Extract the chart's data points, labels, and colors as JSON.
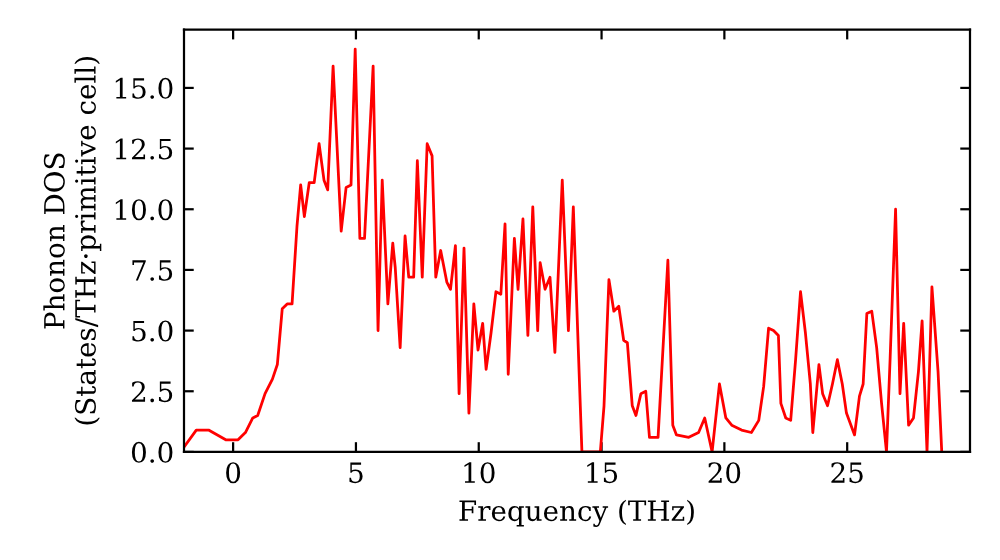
{
  "chart_data": {
    "type": "line",
    "xlabel": "Frequency (THz)",
    "ylabel": "Phonon DOS\n(States/THz·primitive cell)",
    "xlim": [
      -2,
      30
    ],
    "ylim": [
      0,
      17.4
    ],
    "xticks": [
      0,
      5,
      10,
      15,
      20,
      25
    ],
    "yticks": [
      {
        "value": 0,
        "label": "0.0"
      },
      {
        "value": 2.5,
        "label": "2.5"
      },
      {
        "value": 5,
        "label": "5.0"
      },
      {
        "value": 7.5,
        "label": "7.5"
      },
      {
        "value": 10,
        "label": "10.0"
      },
      {
        "value": 12.5,
        "label": "12.5"
      },
      {
        "value": 15,
        "label": "15.0"
      }
    ],
    "grid": false,
    "legend": false,
    "marker": "none",
    "line_style": "solid",
    "series": [
      {
        "color": "#ff0000",
        "x": [
          -2,
          -1.5,
          -1.0,
          -0.3,
          0.2,
          0.5,
          0.8,
          1.0,
          1.3,
          1.6,
          1.8,
          2.0,
          2.2,
          2.4,
          2.6,
          2.75,
          2.9,
          3.1,
          3.3,
          3.5,
          3.7,
          3.85,
          4.07,
          4.4,
          4.6,
          4.8,
          4.97,
          5.16,
          5.35,
          5.7,
          5.9,
          6.07,
          6.3,
          6.5,
          6.6,
          6.8,
          7.0,
          7.15,
          7.35,
          7.5,
          7.7,
          7.9,
          8.1,
          8.25,
          8.45,
          8.7,
          8.85,
          9.05,
          9.2,
          9.4,
          9.6,
          9.8,
          9.97,
          10.16,
          10.3,
          10.5,
          10.7,
          10.9,
          11.07,
          11.2,
          11.45,
          11.6,
          11.8,
          12.0,
          12.2,
          12.4,
          12.5,
          12.7,
          12.9,
          13.1,
          13.4,
          13.65,
          13.85,
          14.2,
          14.95,
          15.1,
          15.3,
          15.5,
          15.7,
          15.9,
          16.05,
          16.25,
          16.4,
          16.6,
          16.8,
          16.95,
          17.3,
          17.7,
          17.9,
          18.05,
          18.55,
          18.95,
          19.2,
          19.5,
          19.8,
          20.06,
          20.3,
          20.7,
          21.1,
          21.4,
          21.6,
          21.8,
          22.0,
          22.2,
          22.3,
          22.5,
          22.7,
          22.9,
          23.1,
          23.3,
          23.5,
          23.6,
          23.85,
          24.0,
          24.2,
          24.4,
          24.6,
          24.8,
          24.97,
          25.3,
          25.5,
          25.65,
          25.8,
          26.0,
          26.2,
          26.4,
          26.6,
          26.75,
          26.97,
          27.15,
          27.3,
          27.5,
          27.7,
          27.9,
          28.05,
          28.25,
          28.45,
          28.7,
          28.85
        ],
        "values": [
          0.2,
          0.9,
          0.9,
          0.5,
          0.5,
          0.8,
          1.4,
          1.5,
          2.4,
          3.0,
          3.6,
          5.9,
          6.1,
          6.1,
          9.3,
          11.0,
          9.7,
          11.1,
          11.1,
          12.7,
          11.2,
          10.8,
          15.9,
          9.1,
          10.9,
          11.0,
          16.6,
          8.8,
          8.8,
          15.9,
          5.0,
          11.2,
          6.1,
          8.6,
          7.6,
          4.3,
          8.9,
          7.2,
          7.2,
          12.0,
          7.2,
          12.7,
          12.2,
          7.2,
          8.3,
          7.0,
          6.7,
          8.5,
          2.4,
          8.4,
          1.6,
          6.1,
          4.2,
          5.3,
          3.4,
          4.9,
          6.6,
          6.5,
          9.4,
          3.2,
          8.8,
          6.7,
          9.6,
          4.8,
          10.1,
          5.0,
          7.8,
          6.7,
          7.2,
          4.1,
          11.2,
          5.0,
          10.1,
          0.0,
          0.0,
          1.9,
          7.1,
          5.8,
          6.0,
          4.6,
          4.5,
          1.9,
          1.5,
          2.4,
          2.5,
          0.6,
          0.6,
          7.9,
          1.1,
          0.7,
          0.6,
          0.8,
          1.4,
          0.0,
          2.8,
          1.4,
          1.1,
          0.9,
          0.8,
          1.3,
          2.7,
          5.1,
          5.0,
          4.8,
          2.0,
          1.4,
          1.3,
          3.8,
          6.6,
          4.9,
          2.8,
          0.8,
          3.6,
          2.4,
          1.9,
          2.8,
          3.8,
          2.8,
          1.6,
          0.7,
          2.3,
          2.8,
          5.7,
          5.8,
          4.3,
          2.0,
          0.0,
          3.9,
          10.0,
          2.4,
          5.3,
          1.1,
          1.4,
          3.3,
          5.4,
          0.0,
          6.8,
          3.3,
          0.0
        ]
      }
    ]
  }
}
